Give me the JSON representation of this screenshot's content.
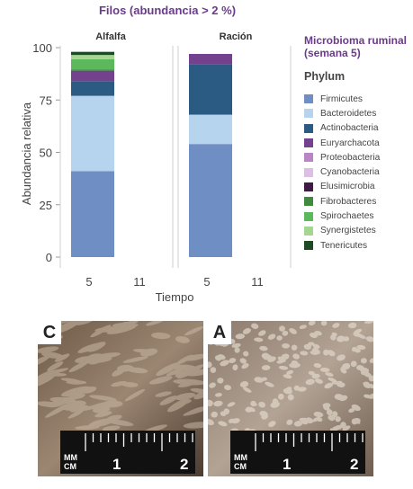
{
  "chart_data": {
    "type": "bar",
    "stacked": true,
    "title": "Filos (abundancia > 2 %)",
    "ylabel": "Abundancia relativa",
    "xlabel": "Tiempo",
    "ylim": [
      0,
      100
    ],
    "yticks": [
      0,
      25,
      50,
      75,
      100
    ],
    "panels": [
      {
        "name": "Alfalfa",
        "categories": [
          "5",
          "11"
        ],
        "series": [
          {
            "name": "Firmicutes",
            "values": [
              41,
              0
            ]
          },
          {
            "name": "Bacteroidetes",
            "values": [
              36,
              0
            ]
          },
          {
            "name": "Actinobacteria",
            "values": [
              7,
              0
            ]
          },
          {
            "name": "Euryarchacota",
            "values": [
              5,
              0
            ]
          },
          {
            "name": "Proteobacteria",
            "values": [
              0,
              0
            ]
          },
          {
            "name": "Cyanobacteria",
            "values": [
              0,
              0
            ]
          },
          {
            "name": "Elusimicrobia",
            "values": [
              0,
              0
            ]
          },
          {
            "name": "Fibrobacteres",
            "values": [
              0.5,
              0
            ]
          },
          {
            "name": "Spirochaetes",
            "values": [
              5,
              0
            ]
          },
          {
            "name": "Synergistetes",
            "values": [
              2,
              0
            ]
          },
          {
            "name": "Tenericutes",
            "values": [
              1.5,
              0
            ]
          }
        ]
      },
      {
        "name": "Ración",
        "categories": [
          "5",
          "11"
        ],
        "series": [
          {
            "name": "Firmicutes",
            "values": [
              54,
              0
            ]
          },
          {
            "name": "Bacteroidetes",
            "values": [
              14,
              0
            ]
          },
          {
            "name": "Actinobacteria",
            "values": [
              24,
              0
            ]
          },
          {
            "name": "Euryarchacota",
            "values": [
              5,
              0
            ]
          },
          {
            "name": "Proteobacteria",
            "values": [
              0,
              0
            ]
          },
          {
            "name": "Cyanobacteria",
            "values": [
              0,
              0
            ]
          },
          {
            "name": "Elusimicrobia",
            "values": [
              0,
              0
            ]
          },
          {
            "name": "Fibrobacteres",
            "values": [
              0,
              0
            ]
          },
          {
            "name": "Spirochaetes",
            "values": [
              0,
              0
            ]
          },
          {
            "name": "Synergistetes",
            "values": [
              0,
              0
            ]
          },
          {
            "name": "Tenericutes",
            "values": [
              0,
              0
            ]
          }
        ]
      }
    ]
  },
  "legend": {
    "title": "Microbioma ruminal (semana 5)",
    "heading": "Phylum",
    "items": [
      {
        "name": "Firmicutes",
        "color": "#6f8fc4"
      },
      {
        "name": "Bacteroidetes",
        "color": "#b6d4ee"
      },
      {
        "name": "Actinobacteria",
        "color": "#2b5a82"
      },
      {
        "name": "Euryarchacota",
        "color": "#74418f"
      },
      {
        "name": "Proteobacteria",
        "color": "#b985c4"
      },
      {
        "name": "Cyanobacteria",
        "color": "#dcbfe2"
      },
      {
        "name": "Elusimicrobia",
        "color": "#3e1a45"
      },
      {
        "name": "Fibrobacteres",
        "color": "#3f8a3f"
      },
      {
        "name": "Spirochaetes",
        "color": "#5cb85c"
      },
      {
        "name": "Synergistetes",
        "color": "#a5d68f"
      },
      {
        "name": "Tenericutes",
        "color": "#1c4a22"
      }
    ]
  },
  "photos": [
    {
      "label": "C"
    },
    {
      "label": "A"
    }
  ],
  "ruler": {
    "unit_top": "MM",
    "unit_bottom": "CM",
    "numbers": [
      "1",
      "2"
    ]
  }
}
